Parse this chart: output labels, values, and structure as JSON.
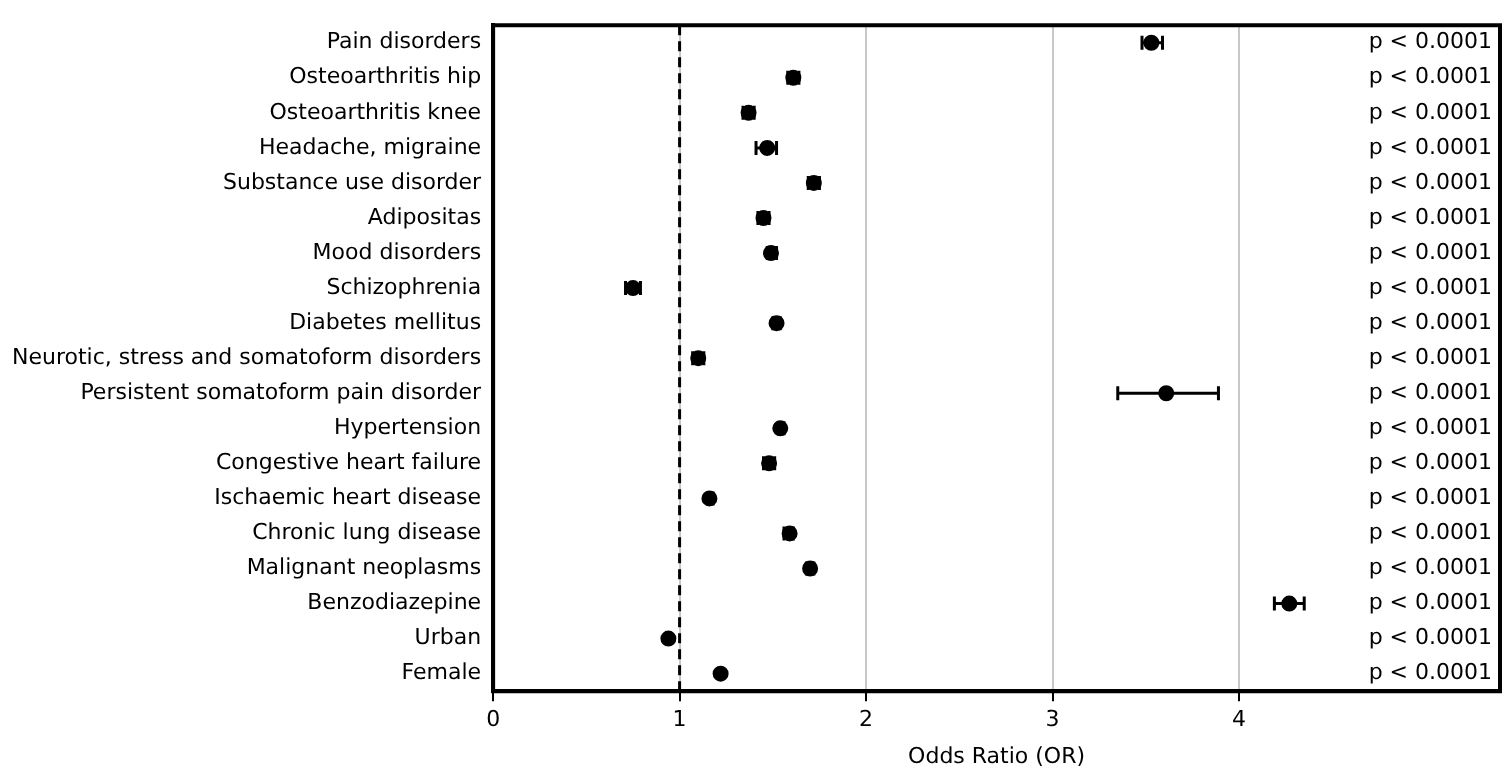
{
  "chart_data": {
    "type": "scatter",
    "orientation": "horizontal",
    "xlabel": "Odds Ratio (OR)",
    "categories": [
      "Pain disorders",
      "Osteoarthritis hip",
      "Osteoarthritis knee",
      "Headache, migraine",
      "Substance use disorder",
      "Adipositas",
      "Mood disorders",
      "Schizophrenia",
      "Diabetes mellitus",
      "Neurotic, stress and somatoform disorders",
      "Persistent somatoform pain disorder",
      "Hypertension",
      "Congestive heart failure",
      "Ischaemic heart disease",
      "Chronic lung disease",
      "Malignant neoplasms",
      "Benzodiazepine",
      "Urban",
      "Female"
    ],
    "series": [
      {
        "color": "#000000",
        "values": [
          3.53,
          1.61,
          1.37,
          1.47,
          1.72,
          1.45,
          1.49,
          0.75,
          1.52,
          1.1,
          3.61,
          1.54,
          1.48,
          1.16,
          1.59,
          1.7,
          4.27,
          0.94,
          1.22
        ],
        "errors": [
          [
            3.48,
            3.59
          ],
          [
            1.58,
            1.64
          ],
          [
            1.34,
            1.4
          ],
          [
            1.41,
            1.52
          ],
          [
            1.69,
            1.75
          ],
          [
            1.42,
            1.48
          ],
          [
            1.47,
            1.52
          ],
          [
            0.71,
            0.79
          ],
          [
            1.5,
            1.54
          ],
          [
            1.07,
            1.13
          ],
          [
            3.35,
            3.89
          ],
          [
            1.53,
            1.56
          ],
          [
            1.45,
            1.51
          ],
          [
            1.15,
            1.18
          ],
          [
            1.56,
            1.61
          ],
          [
            1.68,
            1.72
          ],
          [
            4.19,
            4.35
          ],
          null,
          null
        ]
      }
    ],
    "xlim": [
      0,
      5.4
    ],
    "xticks": [
      0,
      1,
      2,
      3,
      4
    ],
    "grid": "x",
    "marker": "circle",
    "ref_lines": [
      {
        "axis": "x",
        "value": 1,
        "line_style": "dashed",
        "color": "#000000"
      }
    ],
    "annotations": [
      "p < 0.0001",
      "p < 0.0001",
      "p < 0.0001",
      "p < 0.0001",
      "p < 0.0001",
      "p < 0.0001",
      "p < 0.0001",
      "p < 0.0001",
      "p < 0.0001",
      "p < 0.0001",
      "p < 0.0001",
      "p < 0.0001",
      "p < 0.0001",
      "p < 0.0001",
      "p < 0.0001",
      "p < 0.0001",
      "p < 0.0001",
      "p < 0.0001",
      "p < 0.0001"
    ]
  }
}
